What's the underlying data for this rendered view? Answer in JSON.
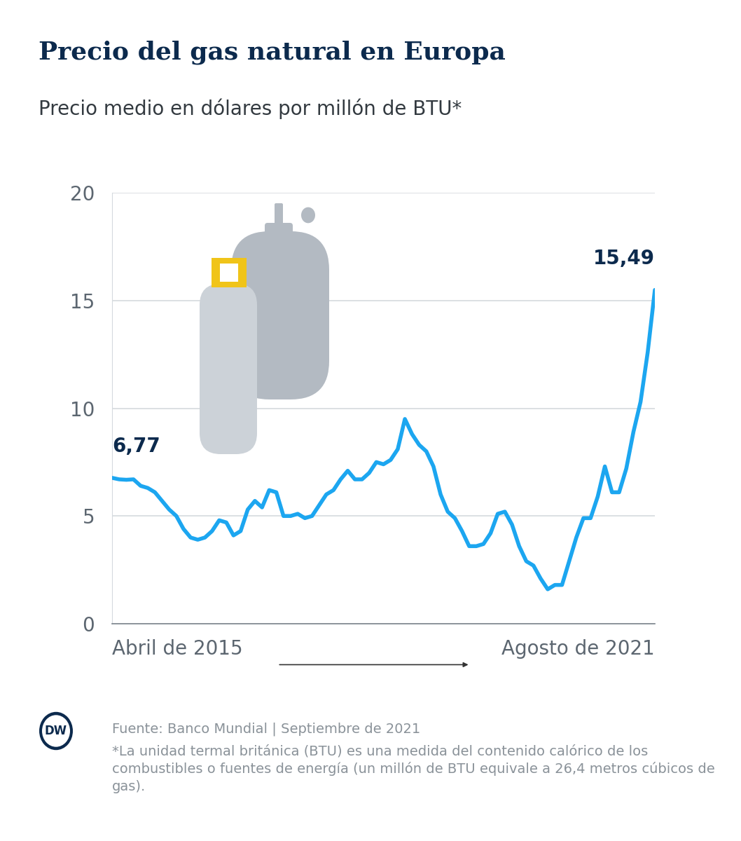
{
  "chart_data": {
    "type": "line",
    "title": "Precio del gas natural en Europa",
    "subtitle": "Precio medio en dólares por millón de BTU*",
    "categories": [
      "Abril de 2015",
      null,
      null,
      null,
      null,
      null,
      null,
      null,
      null,
      null,
      null,
      null,
      null,
      null,
      null,
      null,
      null,
      null,
      null,
      null,
      null,
      null,
      null,
      null,
      null,
      null,
      null,
      null,
      null,
      null,
      null,
      null,
      null,
      null,
      null,
      null,
      null,
      null,
      null,
      null,
      null,
      null,
      null,
      null,
      null,
      null,
      null,
      null,
      null,
      null,
      null,
      null,
      null,
      null,
      null,
      null,
      null,
      null,
      null,
      null,
      null,
      null,
      null,
      null,
      null,
      null,
      null,
      null,
      null,
      null,
      null,
      null,
      null,
      null,
      null,
      null,
      "Agosto de 2021"
    ],
    "values": [
      6.77,
      6.7,
      6.68,
      6.7,
      6.4,
      6.3,
      6.1,
      5.7,
      5.3,
      5.0,
      4.4,
      4.0,
      3.9,
      4.0,
      4.3,
      4.8,
      4.7,
      4.1,
      4.3,
      5.3,
      5.7,
      5.4,
      6.2,
      6.1,
      5.0,
      5.0,
      5.1,
      4.9,
      5.0,
      5.5,
      6.0,
      6.2,
      6.7,
      7.1,
      6.7,
      6.7,
      7.0,
      7.5,
      7.4,
      7.6,
      8.1,
      9.5,
      8.8,
      8.3,
      8.0,
      7.3,
      6.0,
      5.2,
      4.9,
      4.3,
      3.6,
      3.6,
      3.7,
      4.2,
      5.1,
      5.2,
      4.6,
      3.6,
      2.9,
      2.7,
      2.1,
      1.6,
      1.8,
      1.8,
      2.9,
      4.0,
      4.9,
      4.9,
      5.9,
      7.3,
      6.1,
      6.1,
      7.2,
      8.9,
      10.3,
      12.6,
      15.49
    ],
    "color": "#1ca6f0",
    "ylim": [
      0,
      20
    ],
    "yticks": [
      0,
      5,
      10,
      15,
      20
    ],
    "grid": true,
    "annotations": [
      {
        "x": "Abril de 2015",
        "value": 6.77,
        "label": "6,77"
      },
      {
        "x": "Agosto de 2021",
        "value": 15.49,
        "label": "15,49"
      }
    ],
    "logo": "DW",
    "source": "Fuente: Banco Mundial | Septiembre de 2021",
    "note": "*La unidad termal británica (BTU) es una medida del contenido calórico de los combustibles o fuentes de energía (un millón de BTU equivale a 26,4 metros cúbicos de gas)."
  }
}
